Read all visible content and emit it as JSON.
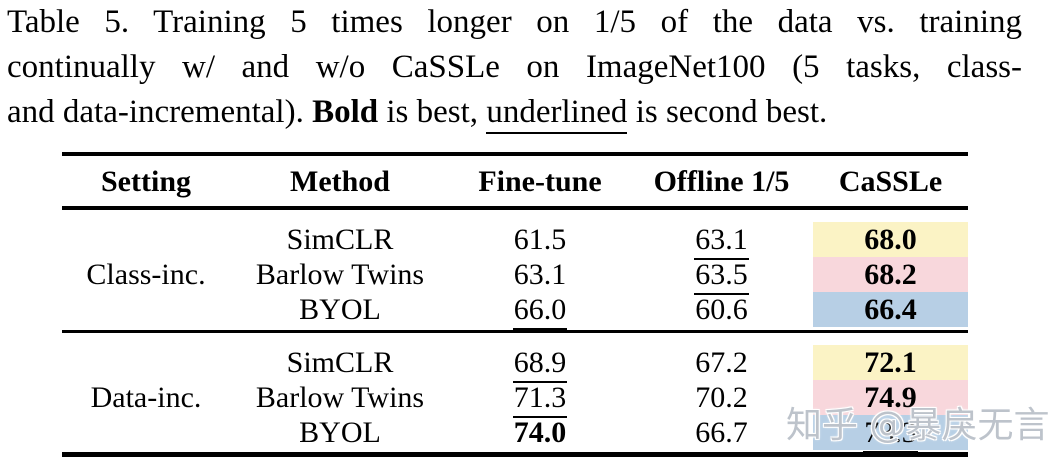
{
  "caption": {
    "line1": "Table 5.  Training 5 times longer on 1/5 of the data vs.  training",
    "line2": "continually w/ and w/o CaSSLe on ImageNet100 (5 tasks, class-",
    "line3_pre": "and data-incremental). ",
    "line3_bold": "Bold",
    "line3_mid": " is best, ",
    "line3_underlined": "underlined",
    "line3_post": " is second best."
  },
  "table": {
    "columns": [
      "Setting",
      "Method",
      "Fine-tune",
      "Offline 1/5",
      "CaSSLe"
    ],
    "groups": [
      {
        "setting": "Class-inc.",
        "rows": [
          {
            "method": "SimCLR",
            "fine_tune": "61.5",
            "offline": "63.1",
            "cassle": "68.0",
            "best": "cassle",
            "second_best": "offline",
            "cassle_bg": "#fbf3c5"
          },
          {
            "method": "Barlow Twins",
            "fine_tune": "63.1",
            "offline": "63.5",
            "cassle": "68.2",
            "best": "cassle",
            "second_best": "offline",
            "cassle_bg": "#f8d7dc"
          },
          {
            "method": "BYOL",
            "fine_tune": "66.0",
            "offline": "60.6",
            "cassle": "66.4",
            "best": "cassle",
            "second_best": "fine_tune",
            "cassle_bg": "#b7cfe5"
          }
        ]
      },
      {
        "setting": "Data-inc.",
        "rows": [
          {
            "method": "SimCLR",
            "fine_tune": "68.9",
            "offline": "67.2",
            "cassle": "72.1",
            "best": "cassle",
            "second_best": "fine_tune",
            "cassle_bg": "#fbf3c5"
          },
          {
            "method": "Barlow Twins",
            "fine_tune": "71.3",
            "offline": "70.2",
            "cassle": "74.9",
            "best": "cassle",
            "second_best": "fine_tune",
            "cassle_bg": "#f8d7dc"
          },
          {
            "method": "BYOL",
            "fine_tune": "74.0",
            "offline": "66.7",
            "cassle": "73.3",
            "best": "fine_tune",
            "second_best": "cassle",
            "cassle_bg": "#b7cfe5"
          }
        ]
      }
    ]
  },
  "colors": {
    "highlight_yellow": "#fbf3c5",
    "highlight_pink": "#f8d7dc",
    "highlight_blue": "#b7cfe5",
    "watermark_gray": "#bdc3cb"
  },
  "watermark": {
    "text": "知乎 @暴戾无言"
  }
}
